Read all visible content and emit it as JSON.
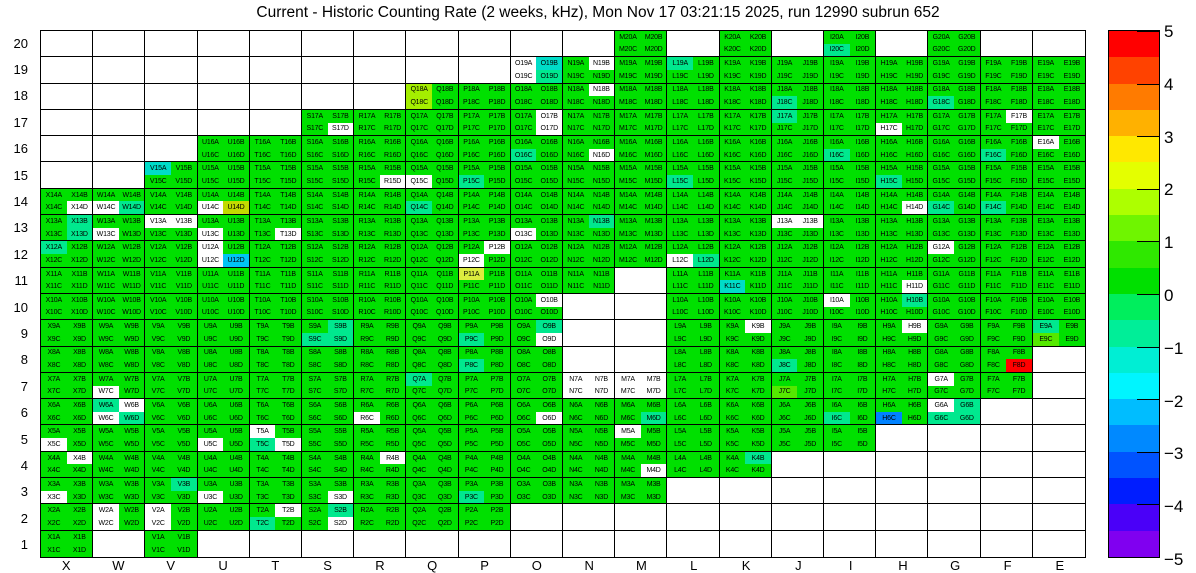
{
  "title": "Current - Historic Counting Rate (2 weeks, kHz), Mon Nov 17 03:21:15 2025, run 12990 subrun 652",
  "chart_data": {
    "type": "heatmap",
    "title": "Current - Historic Counting Rate (2 weeks, kHz), Mon Nov 17 03:21:15 2025, run 12990 subrun 652",
    "columns": [
      "X",
      "W",
      "V",
      "U",
      "T",
      "S",
      "R",
      "Q",
      "P",
      "O",
      "N",
      "M",
      "L",
      "K",
      "J",
      "I",
      "H",
      "G",
      "F",
      "E"
    ],
    "rows": [
      20,
      19,
      18,
      17,
      16,
      15,
      14,
      13,
      12,
      11,
      10,
      9,
      8,
      7,
      6,
      5,
      4,
      3,
      2,
      1
    ],
    "bin_letters": [
      "A",
      "B",
      "C",
      "D"
    ],
    "value_range": [
      -5,
      5
    ],
    "grid_on": true,
    "legend_position": "right",
    "color_key": {
      "g": "#00E000",
      "t": "#00E88E",
      "c": "#00DCC8",
      "w": "#FFFFFF",
      "h": "#A4EE00",
      "y": "#DCEC3F",
      "o": "#C2DA00",
      "u": "#00C4F4",
      "b": "#0082FF",
      "r": "#FF0000",
      "l": "#55E800"
    },
    "color_key_meaning": {
      "g": "approx +0.3 (normal green)",
      "t": "approx -0.4 (spring green)",
      "c": "approx -1.2 (teal)",
      "w": "no data (white, labeled)",
      "h": "approx +2 (chartreuse)",
      "y": "approx +2.4 (pale yellow, P11A)",
      "o": "approx +2.6 (olive yellow, U14D)",
      "u": "approx -2.2 (cyan blue, U12D)",
      "b": "approx -2.7 (blue, H6C)",
      "r": "approx +5 (red, F8D)",
      "l": "approx +1.2 (light green)"
    },
    "cells": [
      [
        null,
        null,
        null,
        null,
        null,
        null,
        null,
        null,
        null,
        null,
        null,
        "gggg",
        null,
        "gggg",
        null,
        "ggtg",
        null,
        "gggg",
        null,
        null
      ],
      [
        null,
        null,
        null,
        null,
        null,
        null,
        null,
        null,
        null,
        "wcwt",
        "gwgg",
        "gggg",
        "tggg",
        "gggg",
        "gggg",
        "gggg",
        "gggg",
        "gggg",
        "gggg",
        "gggg"
      ],
      [
        null,
        null,
        null,
        null,
        null,
        null,
        null,
        "hghg",
        "gggg",
        "gggg",
        "gwgg",
        "gggg",
        "gggg",
        "gggg",
        "ggtg",
        "gggg",
        "gggg",
        "ggtg",
        "gggg",
        "gggg"
      ],
      [
        null,
        null,
        null,
        null,
        null,
        "gggw",
        "gggg",
        "gggg",
        "gggg",
        "gwgw",
        "gggg",
        "gggg",
        "gggg",
        "gggg",
        "tggg",
        "gggg",
        "ggwg",
        "gggg",
        "gwgg",
        "gggg"
      ],
      [
        null,
        null,
        null,
        "gggg",
        "gggg",
        "gggg",
        "gggg",
        "gggg",
        "gggg",
        "ggtg",
        "gggw",
        "gggg",
        "gggg",
        "gggg",
        "gggg",
        "ggtg",
        "gggg",
        "gggg",
        "ggtg",
        "wggg"
      ],
      [
        null,
        null,
        "cggg",
        "gggg",
        "gggg",
        "gggg",
        "gggw",
        "ggwg",
        "ggtg",
        "gggg",
        "gggg",
        "gggg",
        "ggtg",
        "gggg",
        "gggg",
        "gggg",
        "ggtg",
        "gggg",
        "gggg",
        "gggg"
      ],
      [
        "gggw",
        "ggwt",
        "gggg",
        "ggwo",
        "gggg",
        "gggg",
        "gggg",
        "ggtg",
        "gggg",
        "gggg",
        "gggg",
        "gggg",
        "gggg",
        "gggg",
        "gggg",
        "gggg",
        "gggw",
        "ggtg",
        "ggtg",
        "gggg"
      ],
      [
        "gtgt",
        "ggwg",
        "wwgg",
        "ggwg",
        "gggw",
        "gggg",
        "gggg",
        "gggg",
        "gggg",
        "ggwg",
        "gtgg",
        "gggg",
        "gggg",
        "gggg",
        "wwgg",
        "gggg",
        "gggg",
        "gggg",
        "gggg",
        "gggg"
      ],
      [
        "tggg",
        "gggg",
        "gggg",
        "wgwu",
        "gggg",
        "gggg",
        "gggg",
        "gggg",
        "gwwg",
        "gggg",
        "gggg",
        "gggg",
        "ggwt",
        "gggg",
        "gggg",
        "gggg",
        "gggg",
        "wggg",
        "gggg",
        "gggg"
      ],
      [
        "gggg",
        "gggg",
        "gggg",
        "gggg",
        "gggg",
        "gggg",
        "gggg",
        "gggg",
        "yggg",
        "gggg",
        "gggg",
        null,
        "gggg",
        "ggcg",
        "gggg",
        "gggg",
        "gggw",
        "gggg",
        "gggg",
        "gggg"
      ],
      [
        "gggg",
        "gggg",
        "gggg",
        "gggg",
        "gggg",
        "gggg",
        "gggg",
        "gggg",
        "gggg",
        "gwgg",
        null,
        null,
        "gggg",
        "gggg",
        "gggg",
        "wggg",
        "gtgg",
        "gggg",
        "gggg",
        "gggg"
      ],
      [
        "gggg",
        "gggg",
        "gggg",
        "gggg",
        "gggg",
        "gttt",
        "gggg",
        "gggg",
        "ggtg",
        "gtgw",
        null,
        null,
        "gggg",
        "gwgg",
        "gggg",
        "gggg",
        "gwgg",
        "gggg",
        "gggg",
        "tglg"
      ],
      [
        "gggg",
        "gggg",
        "gggg",
        "gggg",
        "gggg",
        "gggg",
        "gggg",
        "gggg",
        "ggtg",
        "gggg",
        null,
        null,
        "gggg",
        "gggg",
        "ggtg",
        "gggg",
        "gggg",
        "gggg",
        "gggr",
        null
      ],
      [
        "gggg",
        "ggwg",
        "gggg",
        "gggg",
        "gggg",
        "gggg",
        "gggg",
        "tggg",
        "gggg",
        "gggg",
        "wwww",
        "wwww",
        "gggg",
        "gggg",
        "gglg",
        "gggg",
        "gggg",
        "wggg",
        "gggg",
        null
      ],
      [
        "gggg",
        "twwt",
        "gggg",
        "gggg",
        "gggg",
        "gggg",
        "ggwg",
        "gggg",
        "gggg",
        "gggw",
        "gggg",
        "gggt",
        "gggg",
        "gggg",
        "gggg",
        "ggtg",
        "ggbg",
        "wttt",
        null,
        null
      ],
      [
        "ggwg",
        "gggg",
        "gggg",
        "ggwg",
        "wgtw",
        "gggg",
        "gggg",
        "gggg",
        "gggg",
        "gggg",
        "gggg",
        "wggg",
        "gggg",
        "gggg",
        "gggg",
        "gggg",
        null,
        null,
        null,
        null
      ],
      [
        "gwgg",
        "gggg",
        "gggg",
        "gggg",
        "gggg",
        "gggg",
        "gwgg",
        "gggg",
        "gggg",
        "gggg",
        "gggg",
        "gggw",
        "gggg",
        "gtgg",
        null,
        null,
        null,
        null,
        null,
        null
      ],
      [
        "ggwg",
        "gggg",
        "gtgg",
        "ggwg",
        "gggg",
        "gggw",
        "gggg",
        "gggg",
        "ggtg",
        "gggg",
        "gggg",
        "gggg",
        null,
        null,
        null,
        null,
        null,
        null,
        null,
        null
      ],
      [
        "gggg",
        "wgwg",
        "wgwg",
        "gggg",
        "gwtg",
        "gtgw",
        "gggg",
        "gggg",
        "gggg",
        null,
        null,
        null,
        null,
        null,
        null,
        null,
        null,
        null,
        null,
        null
      ],
      [
        "gggg",
        null,
        "gggg",
        null,
        null,
        null,
        null,
        null,
        null,
        null,
        null,
        null,
        null,
        null,
        null,
        null,
        null,
        null,
        null,
        null
      ]
    ],
    "colorbar": {
      "tick_values": [
        5,
        4,
        3,
        2,
        1,
        0,
        -1,
        -2,
        -3,
        -4,
        -5
      ],
      "tick_labels": [
        "5",
        "4",
        "3",
        "2",
        "1",
        "0",
        "−1",
        "−2",
        "−3",
        "−4",
        "−5"
      ],
      "segment_colors_top_to_bottom": [
        "#FF0000",
        "#FF4200",
        "#FF7B00",
        "#FFB100",
        "#FFE800",
        "#E4FF00",
        "#ADFF00",
        "#6FF500",
        "#2FE800",
        "#00E000",
        "#00EE5D",
        "#00EE98",
        "#00EED4",
        "#00F5FF",
        "#00BDFF",
        "#0089FF",
        "#0053FF",
        "#001DFF",
        "#4A00F8",
        "#8000F0"
      ]
    }
  }
}
